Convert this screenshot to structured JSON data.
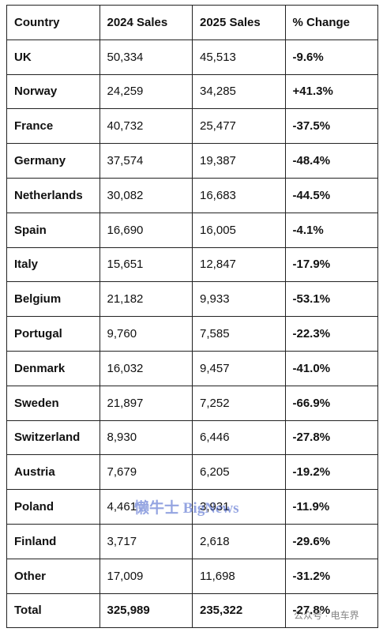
{
  "table": {
    "header": [
      "Country",
      "2024 Sales",
      "2025 Sales",
      "% Change"
    ],
    "rows": [
      [
        "UK",
        "50,334",
        "45,513",
        "-9.6%"
      ],
      [
        "Norway",
        "24,259",
        "34,285",
        "+41.3%"
      ],
      [
        "France",
        "40,732",
        "25,477",
        "-37.5%"
      ],
      [
        "Germany",
        "37,574",
        "19,387",
        "-48.4%"
      ],
      [
        "Netherlands",
        "30,082",
        "16,683",
        "-44.5%"
      ],
      [
        "Spain",
        "16,690",
        "16,005",
        "-4.1%"
      ],
      [
        "Italy",
        "15,651",
        "12,847",
        "-17.9%"
      ],
      [
        "Belgium",
        "21,182",
        "9,933",
        "-53.1%"
      ],
      [
        "Portugal",
        "9,760",
        "7,585",
        "-22.3%"
      ],
      [
        "Denmark",
        "16,032",
        "9,457",
        "-41.0%"
      ],
      [
        "Sweden",
        "21,897",
        "7,252",
        "-66.9%"
      ],
      [
        "Switzerland",
        "8,930",
        "6,446",
        "-27.8%"
      ],
      [
        "Austria",
        "7,679",
        "6,205",
        "-19.2%"
      ],
      [
        "Poland",
        "4,461",
        "3,931",
        "-11.9%"
      ],
      [
        "Finland",
        "3,717",
        "2,618",
        "-29.6%"
      ],
      [
        "Other",
        "17,009",
        "11,698",
        "-31.2%"
      ]
    ],
    "total": [
      "Total",
      "325,989",
      "235,322",
      "-27.8%"
    ]
  },
  "watermarks": [
    "懒牛士 BigNews",
    "公众号 · 电车界"
  ]
}
